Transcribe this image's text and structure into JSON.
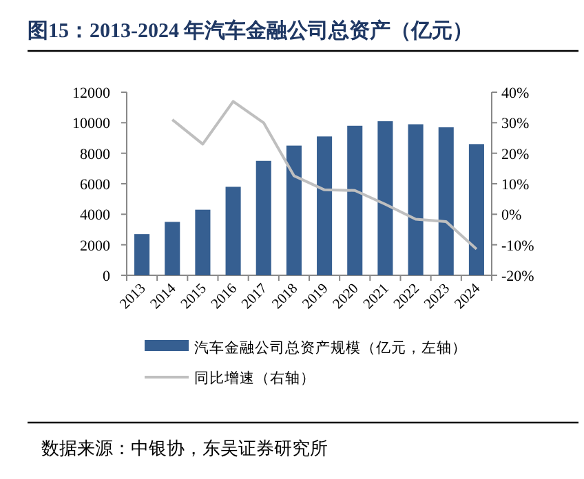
{
  "chart_data": {
    "type": "bar",
    "title": "图15：2013-2024 年汽车金融公司总资产（亿元）",
    "categories": [
      "2013",
      "2014",
      "2015",
      "2016",
      "2017",
      "2018",
      "2019",
      "2020",
      "2021",
      "2022",
      "2023",
      "2024"
    ],
    "series": [
      {
        "name": "汽车金融公司总资产规模（亿元，左轴）",
        "color": "#365f91",
        "values": [
          2700,
          3500,
          4300,
          5800,
          7500,
          8500,
          9100,
          9800,
          10100,
          9900,
          9700,
          8600
        ]
      },
      {
        "name": "同比增速（右轴）",
        "color": "#bfbfbf",
        "type": "line",
        "axis": "y2",
        "values": [
          null,
          31,
          23,
          37,
          30,
          12.6,
          8,
          7.8,
          3.3,
          -1.6,
          -2.4,
          -11.4
        ]
      }
    ],
    "ylim": [
      0,
      12000
    ],
    "yticks": [
      0,
      2000,
      4000,
      6000,
      8000,
      10000,
      12000
    ],
    "y2lim": [
      -20,
      40
    ],
    "y2ticks": [
      {
        "value": -20,
        "label": "-20%"
      },
      {
        "value": -10,
        "label": "-10%"
      },
      {
        "value": 0,
        "label": "0%"
      },
      {
        "value": 10,
        "label": "10%"
      },
      {
        "value": 20,
        "label": "20%"
      },
      {
        "value": 30,
        "label": "30%"
      },
      {
        "value": 40,
        "label": "40%"
      }
    ],
    "legend": "bottom",
    "grid": false,
    "annotations": [
      "数据来源：中银协，东吴证券研究所"
    ]
  }
}
